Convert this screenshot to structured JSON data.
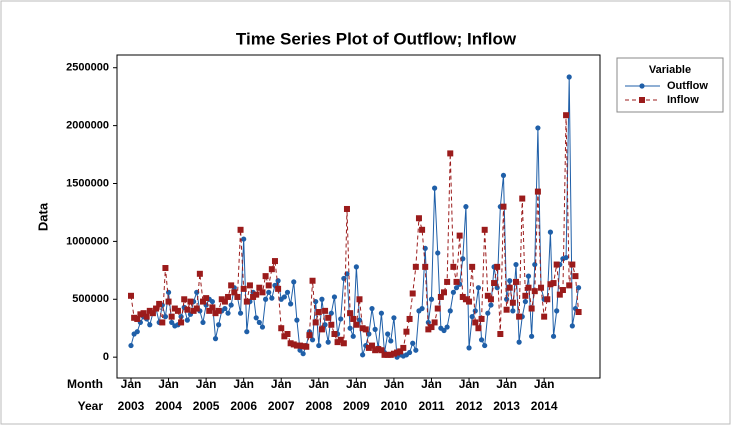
{
  "chart_data": {
    "type": "line",
    "title": "Time Series Plot of Outflow; Inflow",
    "ylabel": "Data",
    "x_row_labels": [
      "Month",
      "Year"
    ],
    "legend_title": "Variable",
    "legend": "right",
    "categories": [
      "Jan",
      null,
      null,
      null,
      null,
      null,
      null,
      null,
      null,
      null,
      null,
      null,
      "Jan",
      null,
      null,
      null,
      null,
      null,
      null,
      null,
      null,
      null,
      null,
      null,
      "Jan",
      null,
      null,
      null,
      null,
      null,
      null,
      null,
      null,
      null,
      null,
      null,
      "Jan",
      null,
      null,
      null,
      null,
      null,
      null,
      null,
      null,
      null,
      null,
      null,
      "Jan",
      null,
      null,
      null,
      null,
      null,
      null,
      null,
      null,
      null,
      null,
      null,
      "Jan",
      null,
      null,
      null,
      null,
      null,
      null,
      null,
      null,
      null,
      null,
      null,
      "Jan",
      null,
      null,
      null,
      null,
      null,
      null,
      null,
      null,
      null,
      null,
      null,
      "Jan",
      null,
      null,
      null,
      null,
      null,
      null,
      null,
      null,
      null,
      null,
      null,
      "Jan",
      null,
      null,
      null,
      null,
      null,
      null,
      null,
      null,
      null,
      null,
      null,
      "Jan",
      null,
      null,
      null,
      null,
      null,
      null,
      null,
      null,
      null,
      null,
      null,
      "Jan",
      null,
      null,
      null,
      null,
      null,
      null,
      null,
      null,
      null,
      null,
      null,
      "Jan",
      null,
      null,
      null,
      null,
      null,
      null,
      null,
      null,
      null,
      null,
      null
    ],
    "category_years": [
      "2003",
      null,
      null,
      null,
      null,
      null,
      null,
      null,
      null,
      null,
      null,
      null,
      "2004",
      null,
      null,
      null,
      null,
      null,
      null,
      null,
      null,
      null,
      null,
      null,
      "2005",
      null,
      null,
      null,
      null,
      null,
      null,
      null,
      null,
      null,
      null,
      null,
      "2006",
      null,
      null,
      null,
      null,
      null,
      null,
      null,
      null,
      null,
      null,
      null,
      "2007",
      null,
      null,
      null,
      null,
      null,
      null,
      null,
      null,
      null,
      null,
      null,
      "2008",
      null,
      null,
      null,
      null,
      null,
      null,
      null,
      null,
      null,
      null,
      null,
      "2009",
      null,
      null,
      null,
      null,
      null,
      null,
      null,
      null,
      null,
      null,
      null,
      "2010",
      null,
      null,
      null,
      null,
      null,
      null,
      null,
      null,
      null,
      null,
      null,
      "2011",
      null,
      null,
      null,
      null,
      null,
      null,
      null,
      null,
      null,
      null,
      null,
      "2012",
      null,
      null,
      null,
      null,
      null,
      null,
      null,
      null,
      null,
      null,
      null,
      "2013",
      null,
      null,
      null,
      null,
      null,
      null,
      null,
      null,
      null,
      null,
      null,
      "2014",
      null,
      null,
      null,
      null,
      null,
      null,
      null,
      null,
      null,
      null,
      null
    ],
    "ylim": [
      -180000,
      2610000
    ],
    "yticks": [
      0,
      500000,
      1000000,
      1500000,
      2000000,
      2500000
    ],
    "series": [
      {
        "name": "Outflow",
        "color": "#1f5fa8",
        "marker": "circle",
        "dash": false,
        "values": [
          100000,
          200000,
          220000,
          300000,
          350000,
          330000,
          280000,
          380000,
          420000,
          300000,
          450000,
          350000,
          560000,
          300000,
          270000,
          280000,
          350000,
          430000,
          320000,
          370000,
          480000,
          560000,
          400000,
          300000,
          450000,
          500000,
          480000,
          160000,
          280000,
          400000,
          420000,
          380000,
          450000,
          600000,
          520000,
          380000,
          1020000,
          220000,
          480000,
          560000,
          340000,
          300000,
          260000,
          500000,
          560000,
          510000,
          620000,
          660000,
          500000,
          520000,
          560000,
          460000,
          650000,
          320000,
          60000,
          30000,
          100000,
          220000,
          150000,
          480000,
          100000,
          500000,
          280000,
          130000,
          380000,
          520000,
          200000,
          330000,
          680000,
          720000,
          250000,
          180000,
          780000,
          320000,
          20000,
          100000,
          200000,
          420000,
          240000,
          80000,
          380000,
          40000,
          200000,
          140000,
          340000,
          0,
          20000,
          10000,
          20000,
          40000,
          120000,
          60000,
          400000,
          420000,
          940000,
          300000,
          500000,
          1460000,
          900000,
          250000,
          230000,
          260000,
          400000,
          560000,
          600000,
          630000,
          850000,
          1300000,
          80000,
          350000,
          400000,
          600000,
          150000,
          100000,
          380000,
          450000,
          780000,
          600000,
          1300000,
          1570000,
          500000,
          660000,
          400000,
          800000,
          130000,
          350000,
          480000,
          700000,
          180000,
          800000,
          1980000,
          600000,
          500000,
          500000,
          1080000,
          180000,
          400000,
          800000,
          850000,
          860000,
          2420000,
          270000,
          420000,
          600000
        ]
      },
      {
        "name": "Inflow",
        "color": "#9b1b1b",
        "marker": "square",
        "dash": true,
        "values": [
          530000,
          340000,
          330000,
          370000,
          380000,
          350000,
          400000,
          380000,
          420000,
          460000,
          300000,
          770000,
          480000,
          350000,
          420000,
          400000,
          300000,
          500000,
          410000,
          480000,
          400000,
          420000,
          720000,
          480000,
          510000,
          400000,
          430000,
          380000,
          400000,
          500000,
          480000,
          520000,
          620000,
          560000,
          520000,
          1100000,
          590000,
          480000,
          620000,
          520000,
          540000,
          600000,
          560000,
          700000,
          620000,
          760000,
          830000,
          590000,
          250000,
          180000,
          200000,
          120000,
          110000,
          100000,
          100000,
          95000,
          90000,
          190000,
          660000,
          300000,
          390000,
          240000,
          400000,
          340000,
          280000,
          200000,
          130000,
          150000,
          120000,
          1280000,
          380000,
          330000,
          280000,
          500000,
          250000,
          240000,
          80000,
          100000,
          60000,
          70000,
          60000,
          20000,
          20000,
          20000,
          30000,
          40000,
          50000,
          80000,
          220000,
          330000,
          550000,
          780000,
          1200000,
          1100000,
          780000,
          240000,
          260000,
          300000,
          420000,
          520000,
          560000,
          650000,
          1760000,
          780000,
          650000,
          1050000,
          520000,
          500000,
          480000,
          780000,
          300000,
          250000,
          330000,
          1100000,
          530000,
          500000,
          640000,
          780000,
          200000,
          1300000,
          410000,
          600000,
          470000,
          650000,
          350000,
          1370000,
          530000,
          600000,
          420000,
          570000,
          1430000,
          600000,
          350000,
          500000,
          630000,
          640000,
          800000,
          540000,
          580000,
          2090000,
          620000,
          800000,
          700000,
          390000
        ]
      }
    ]
  }
}
